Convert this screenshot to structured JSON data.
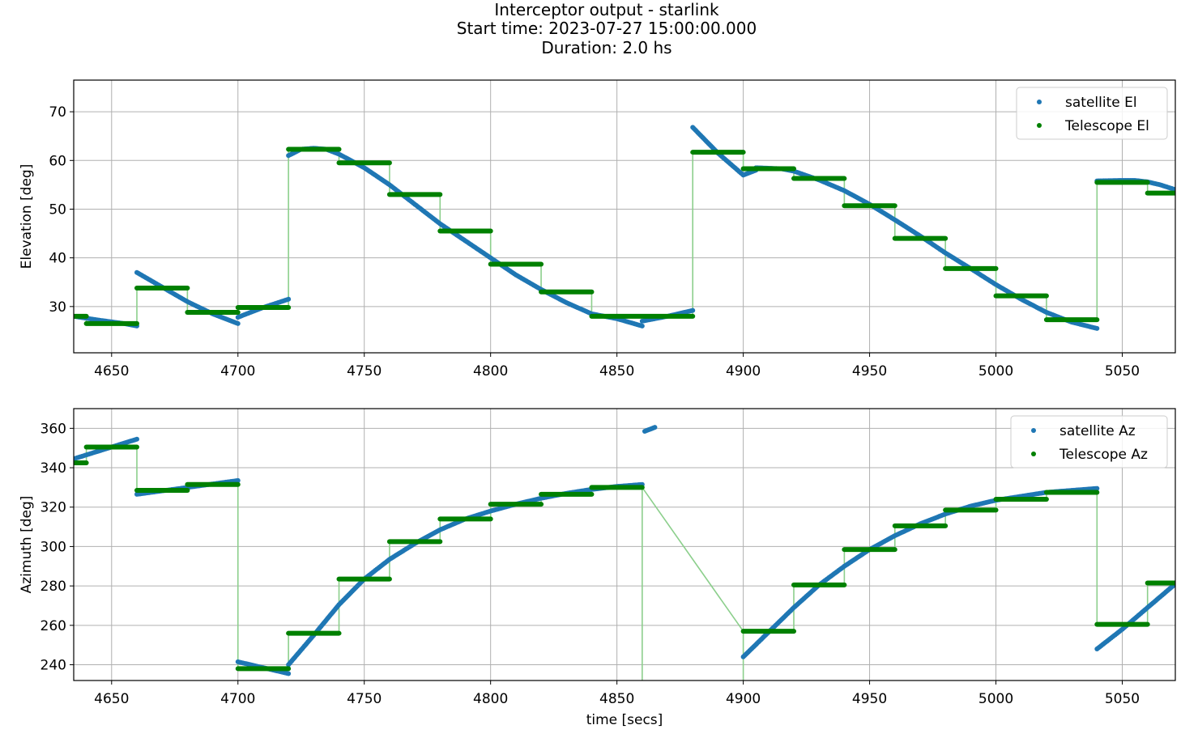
{
  "title_lines": [
    "Interceptor output - starlink",
    "Start time: 2023-07-27 15:00:00.000",
    "Duration: 2.0 hs"
  ],
  "colors": {
    "satellite": "#1f77b4",
    "telescope": "#008000",
    "telescope_line": "#8ccf8c",
    "grid": "#b0b0b0"
  },
  "chart_data": [
    {
      "type": "scatter",
      "xlabel": "",
      "ylabel": "Elevation [deg]",
      "xlim": [
        4635,
        5071
      ],
      "ylim": [
        20.5,
        76.5
      ],
      "xticks": [
        4650,
        4700,
        4750,
        4800,
        4850,
        4900,
        4950,
        5000,
        5050
      ],
      "yticks": [
        30,
        40,
        50,
        60,
        70
      ],
      "grid": true,
      "legend_position": "top-right",
      "legend": [
        "satellite El",
        "Telescope El"
      ],
      "series": [
        {
          "name": "satellite El",
          "kind": "dots",
          "segments": [
            {
              "x": [
                4635,
                4645,
                4655,
                4660
              ],
              "y": [
                28.0,
                27.2,
                26.5,
                26.0
              ]
            },
            {
              "x": [
                4660,
                4670,
                4680,
                4690,
                4700
              ],
              "y": [
                37.0,
                34.0,
                31.0,
                28.5,
                26.5
              ]
            },
            {
              "x": [
                4700,
                4710,
                4720
              ],
              "y": [
                27.8,
                29.8,
                31.5
              ]
            },
            {
              "x": [
                4720,
                4725,
                4730,
                4735,
                4740,
                4750,
                4760,
                4770,
                4780,
                4790,
                4800,
                4810,
                4820,
                4830,
                4840,
                4850,
                4860
              ],
              "y": [
                61.0,
                62.3,
                62.5,
                62.3,
                61.3,
                58.5,
                55.0,
                51.0,
                47.0,
                43.5,
                40.0,
                36.5,
                33.5,
                30.8,
                28.5,
                27.5,
                26.0
              ]
            },
            {
              "x": [
                4860,
                4870,
                4880
              ],
              "y": [
                27.0,
                28.0,
                29.2
              ]
            },
            {
              "x": [
                4880,
                4890,
                4900,
                4905
              ],
              "y": [
                66.8,
                61.5,
                57.0,
                58.0
              ]
            },
            {
              "x": [
                4905,
                4915,
                4920,
                4930,
                4940,
                4950,
                4960,
                4970,
                4980,
                4990,
                5000,
                5010,
                5020,
                5030,
                5040
              ],
              "y": [
                58.5,
                58.3,
                57.8,
                56.0,
                53.8,
                51.0,
                47.8,
                44.5,
                41.0,
                37.8,
                34.5,
                31.5,
                28.8,
                26.8,
                25.5
              ]
            },
            {
              "x": [
                5040,
                5050,
                5055,
                5060,
                5065,
                5071
              ],
              "y": [
                55.8,
                55.9,
                55.9,
                55.6,
                55.0,
                54.0
              ]
            }
          ]
        },
        {
          "name": "Telescope El",
          "kind": "steps",
          "steps": [
            {
              "x0": 4635,
              "x1": 4640,
              "y": 28.0
            },
            {
              "x0": 4640,
              "x1": 4660,
              "y": 26.5
            },
            {
              "x0": 4660,
              "x1": 4680,
              "y": 33.8
            },
            {
              "x0": 4680,
              "x1": 4700,
              "y": 28.8
            },
            {
              "x0": 4700,
              "x1": 4720,
              "y": 29.8
            },
            {
              "x0": 4720,
              "x1": 4740,
              "y": 62.3
            },
            {
              "x0": 4740,
              "x1": 4760,
              "y": 59.5
            },
            {
              "x0": 4760,
              "x1": 4780,
              "y": 53.0
            },
            {
              "x0": 4780,
              "x1": 4800,
              "y": 45.5
            },
            {
              "x0": 4800,
              "x1": 4820,
              "y": 38.7
            },
            {
              "x0": 4820,
              "x1": 4840,
              "y": 33.0
            },
            {
              "x0": 4840,
              "x1": 4880,
              "y": 28.0
            },
            {
              "x0": 4880,
              "x1": 4900,
              "y": 61.7
            },
            {
              "x0": 4900,
              "x1": 4920,
              "y": 58.3
            },
            {
              "x0": 4920,
              "x1": 4940,
              "y": 56.3
            },
            {
              "x0": 4940,
              "x1": 4960,
              "y": 50.7
            },
            {
              "x0": 4960,
              "x1": 4980,
              "y": 44.0
            },
            {
              "x0": 4980,
              "x1": 5000,
              "y": 37.8
            },
            {
              "x0": 5000,
              "x1": 5020,
              "y": 32.2
            },
            {
              "x0": 5020,
              "x1": 5040,
              "y": 27.3
            },
            {
              "x0": 5040,
              "x1": 5060,
              "y": 55.5
            },
            {
              "x0": 5060,
              "x1": 5071,
              "y": 53.3
            }
          ]
        }
      ]
    },
    {
      "type": "scatter",
      "xlabel": "time [secs]",
      "ylabel": "Azimuth [deg]",
      "xlim": [
        4635,
        5071
      ],
      "ylim": [
        232,
        370
      ],
      "xticks": [
        4650,
        4700,
        4750,
        4800,
        4850,
        4900,
        4950,
        5000,
        5050
      ],
      "yticks": [
        240,
        260,
        280,
        300,
        320,
        340,
        360
      ],
      "grid": true,
      "legend_position": "top-right",
      "legend": [
        "satellite Az",
        "Telescope Az"
      ],
      "series": [
        {
          "name": "satellite Az",
          "kind": "dots",
          "segments": [
            {
              "x": [
                4635,
                4645,
                4655,
                4660
              ],
              "y": [
                344.5,
                348.5,
                352.5,
                354.5
              ]
            },
            {
              "x": [
                4660,
                4680,
                4700
              ],
              "y": [
                326.5,
                330.0,
                333.5
              ]
            },
            {
              "x": [
                4700,
                4710,
                4720
              ],
              "y": [
                241.5,
                238.5,
                235.5
              ]
            },
            {
              "x": [
                4720,
                4730,
                4740,
                4750,
                4760,
                4770,
                4780,
                4790,
                4800,
                4810,
                4820,
                4830,
                4840,
                4850,
                4860
              ],
              "y": [
                240.0,
                255.0,
                270.5,
                283.5,
                293.5,
                301.5,
                308.5,
                314.0,
                318.0,
                321.5,
                324.5,
                327.0,
                329.0,
                330.5,
                331.5
              ]
            },
            {
              "x": [
                4861,
                4863,
                4865
              ],
              "y": [
                358.5,
                359.5,
                360.5
              ]
            },
            {
              "x": [
                4900,
                4910,
                4920,
                4930,
                4940,
                4950,
                4960,
                4970,
                4980,
                4990,
                5000,
                5010,
                5020,
                5030,
                5040
              ],
              "y": [
                244.0,
                256.5,
                269.0,
                280.5,
                290.0,
                298.5,
                305.5,
                311.5,
                316.5,
                320.5,
                323.5,
                325.5,
                327.5,
                328.5,
                329.5
              ]
            },
            {
              "x": [
                5040,
                5050,
                5060,
                5071
              ],
              "y": [
                248.0,
                258.0,
                269.0,
                281.0
              ]
            }
          ]
        },
        {
          "name": "Telescope Az",
          "kind": "steps",
          "steps": [
            {
              "x0": 4635,
              "x1": 4640,
              "y": 342.5
            },
            {
              "x0": 4640,
              "x1": 4660,
              "y": 350.5
            },
            {
              "x0": 4660,
              "x1": 4680,
              "y": 328.5
            },
            {
              "x0": 4680,
              "x1": 4700,
              "y": 331.5
            },
            {
              "x0": 4700,
              "x1": 4720,
              "y": 238.0
            },
            {
              "x0": 4720,
              "x1": 4740,
              "y": 256.0
            },
            {
              "x0": 4740,
              "x1": 4760,
              "y": 283.5
            },
            {
              "x0": 4760,
              "x1": 4780,
              "y": 302.5
            },
            {
              "x0": 4780,
              "x1": 4800,
              "y": 314.0
            },
            {
              "x0": 4800,
              "x1": 4820,
              "y": 321.5
            },
            {
              "x0": 4820,
              "x1": 4840,
              "y": 326.5
            },
            {
              "x0": 4840,
              "x1": 4860,
              "y": 330.0
            },
            {
              "x0": 4900,
              "x1": 4920,
              "y": 257.0
            },
            {
              "x0": 4920,
              "x1": 4940,
              "y": 280.5
            },
            {
              "x0": 4940,
              "x1": 4960,
              "y": 298.5
            },
            {
              "x0": 4960,
              "x1": 4980,
              "y": 310.5
            },
            {
              "x0": 4980,
              "x1": 5000,
              "y": 318.5
            },
            {
              "x0": 5000,
              "x1": 5020,
              "y": 324.0
            },
            {
              "x0": 5020,
              "x1": 5040,
              "y": 327.5
            },
            {
              "x0": 5040,
              "x1": 5060,
              "y": 260.5
            },
            {
              "x0": 5060,
              "x1": 5071,
              "y": 281.5
            }
          ],
          "transitions_to_bottom": [
            4860,
            4900
          ]
        }
      ]
    }
  ]
}
